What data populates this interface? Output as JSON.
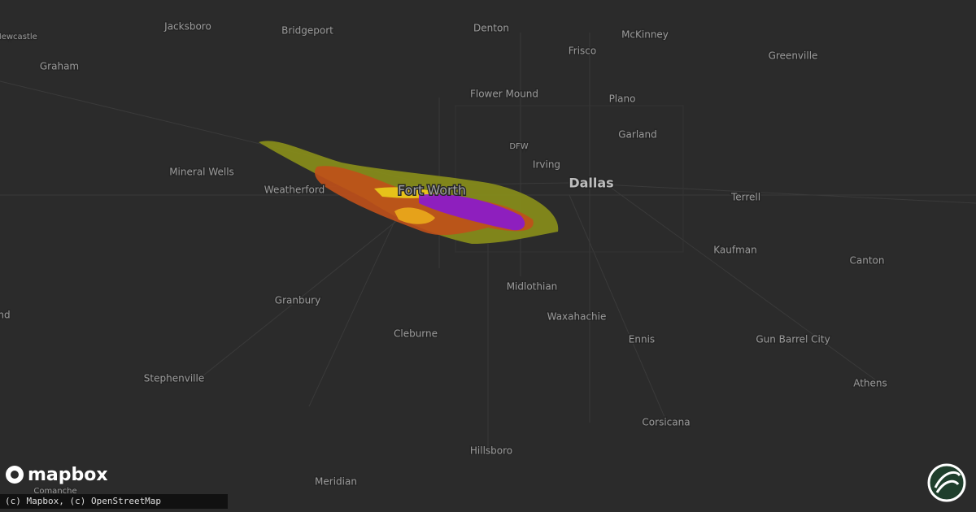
{
  "map": {
    "places": [
      "Newcastle",
      "Jacksboro",
      "Bridgeport",
      "Denton",
      "McKinney",
      "Frisco",
      "Greenville",
      "Graham",
      "Flower Mound",
      "Plano",
      "Garland",
      "DFW",
      "Irving",
      "Mineral Wells",
      "Weatherford",
      "Fort Worth",
      "Dallas",
      "Terrell",
      "Kaufman",
      "Canton",
      "Midlothian",
      "Waxahachie",
      "Granbury",
      "nd",
      "Cleburne",
      "Ennis",
      "Gun Barrel City",
      "Athens",
      "Stephenville",
      "Corsicana",
      "Hillsboro",
      "Meridian",
      "Comanche"
    ]
  },
  "logo": "mapbox",
  "attribution": "(c) Mapbox, (c) OpenStreetMap"
}
